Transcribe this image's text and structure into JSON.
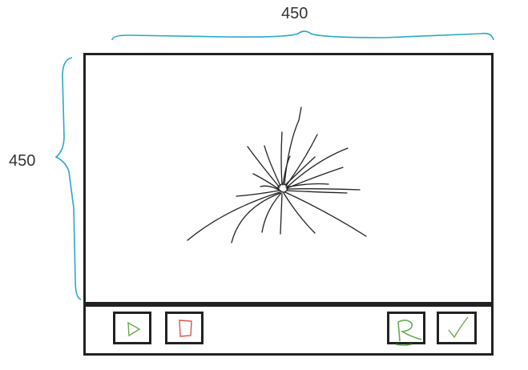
{
  "dimensions": {
    "width_label": "450",
    "height_label": "450"
  },
  "colors": {
    "dimension_brace": "#2aa8c6",
    "frame": "#222222",
    "neuron": "#222222",
    "play_icon": "#6aa84f",
    "stop_icon": "#d9534f",
    "reset_icon": "#6aa84f",
    "confirm_icon": "#6aa84f"
  },
  "toolbar": {
    "buttons": [
      {
        "name": "play-button",
        "icon": "play-icon"
      },
      {
        "name": "stop-button",
        "icon": "stop-icon"
      },
      {
        "name": "reset-button",
        "icon": "reset-icon"
      },
      {
        "name": "confirm-button",
        "icon": "check-icon"
      }
    ]
  }
}
